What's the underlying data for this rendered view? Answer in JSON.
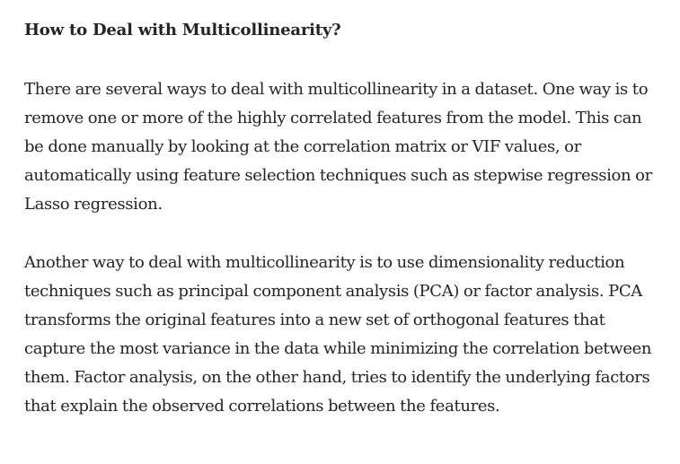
{
  "article": {
    "heading": "How to Deal with Multicollinearity?",
    "paragraphs": [
      "There are several ways to deal with multicollinearity in a dataset. One way is to remove one or more of the highly correlated features from the model. This can be done manually by looking at the correlation matrix or VIF values, or automatically using feature selection techniques such as stepwise regression or Lasso regression.",
      "Another way to deal with multicollinearity is to use dimensionality reduction techniques such as principal component analysis (PCA) or factor analysis. PCA transforms the original features into a new set of orthogonal features that capture the most variance in the data while minimizing the correlation between them. Factor analysis, on the other hand, tries to identify the underlying factors that explain the observed correlations between the features."
    ]
  }
}
